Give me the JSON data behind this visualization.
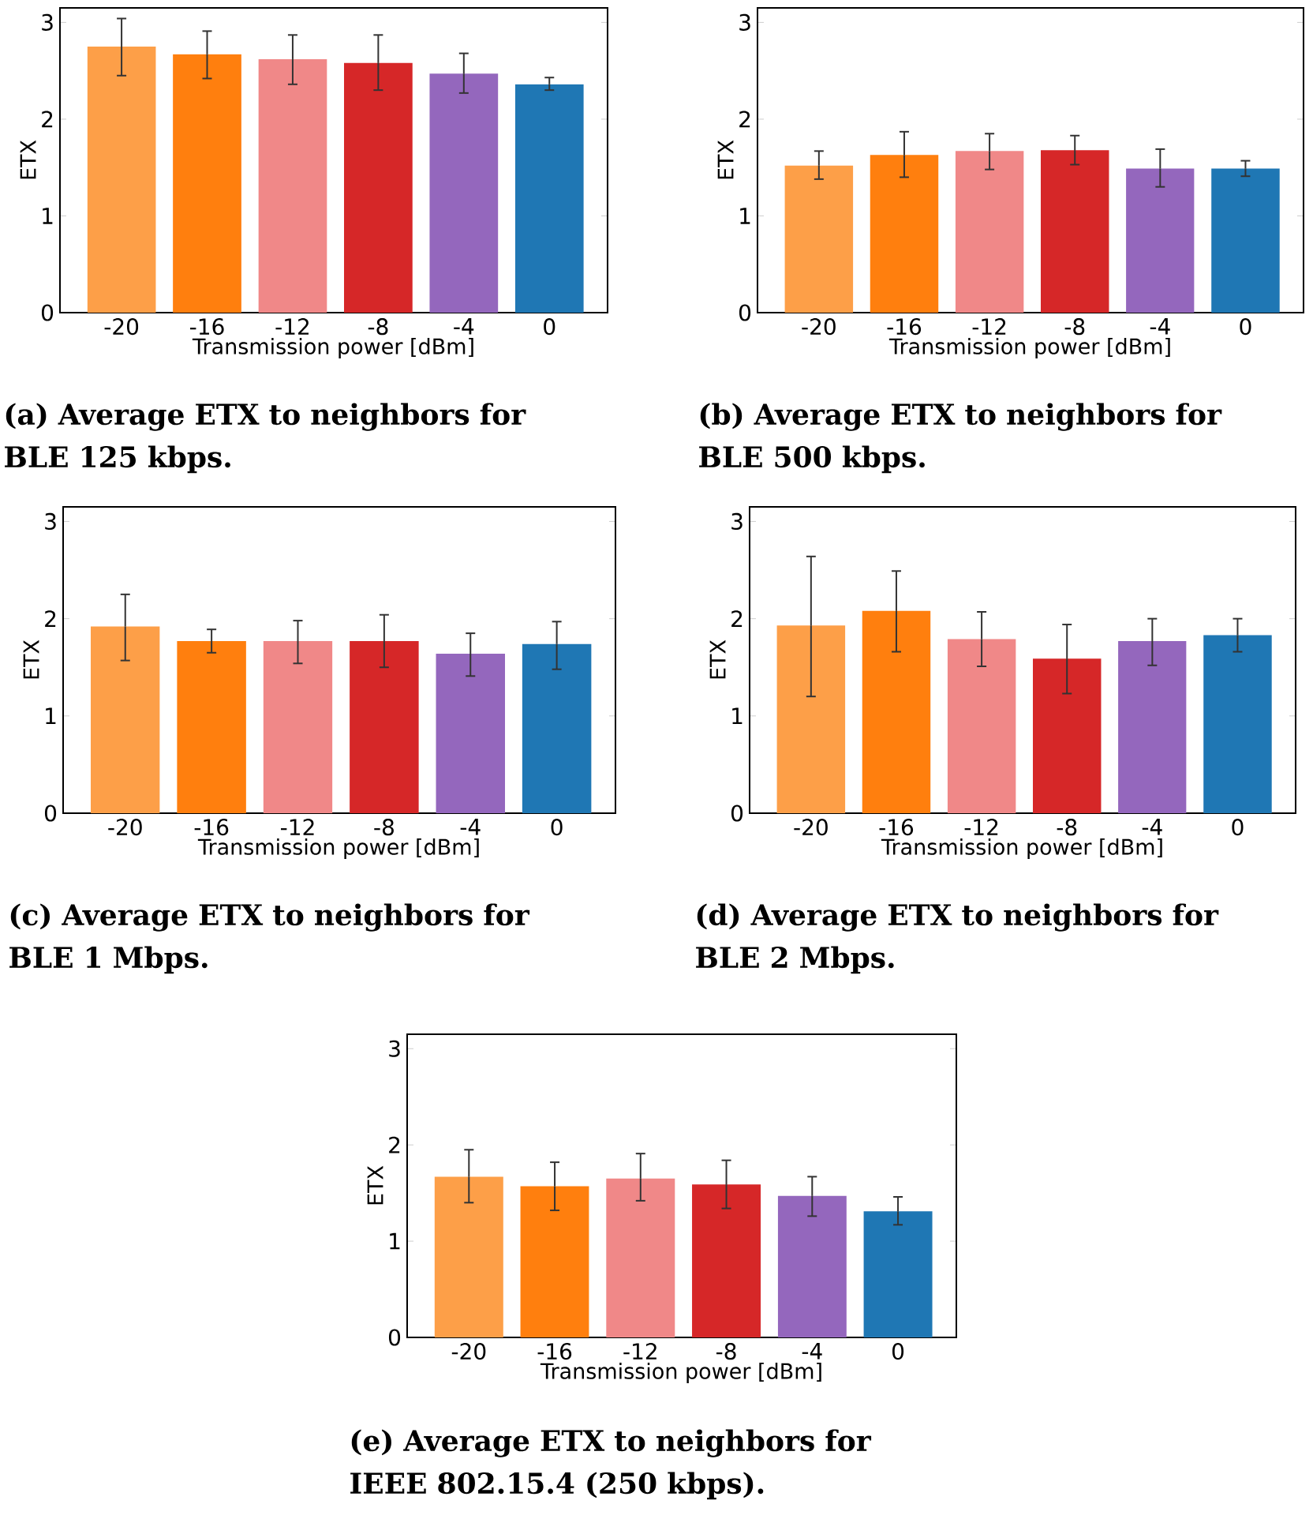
{
  "chart_data": [
    {
      "type": "bar",
      "title": "(a) Average ETX to neighbors for BLE 125 kbps.",
      "xlabel": "Transmission power [dBm]",
      "ylabel": "ETX",
      "categories": [
        "-20",
        "-16",
        "-12",
        "-8",
        "-4",
        "0"
      ],
      "values": [
        2.75,
        2.67,
        2.62,
        2.58,
        2.47,
        2.36
      ],
      "errors": [
        [
          2.45,
          3.04
        ],
        [
          2.42,
          2.91
        ],
        [
          2.36,
          2.87
        ],
        [
          2.3,
          2.87
        ],
        [
          2.27,
          2.68
        ],
        [
          2.3,
          2.43
        ]
      ],
      "colors": [
        "#fd9f48",
        "#ff7f0e",
        "#f08888",
        "#d62728",
        "#9467bd",
        "#1f77b4"
      ],
      "ylim": [
        0,
        3.15
      ],
      "yticks": [
        0,
        1,
        2,
        3
      ]
    },
    {
      "type": "bar",
      "title": "(b) Average ETX to neighbors for BLE 500 kbps.",
      "xlabel": "Transmission power [dBm]",
      "ylabel": "ETX",
      "categories": [
        "-20",
        "-16",
        "-12",
        "-8",
        "-4",
        "0"
      ],
      "values": [
        1.52,
        1.63,
        1.67,
        1.68,
        1.49,
        1.49
      ],
      "errors": [
        [
          1.38,
          1.67
        ],
        [
          1.4,
          1.87
        ],
        [
          1.48,
          1.85
        ],
        [
          1.53,
          1.83
        ],
        [
          1.3,
          1.69
        ],
        [
          1.41,
          1.57
        ]
      ],
      "colors": [
        "#fd9f48",
        "#ff7f0e",
        "#f08888",
        "#d62728",
        "#9467bd",
        "#1f77b4"
      ],
      "ylim": [
        0,
        3.15
      ],
      "yticks": [
        0,
        1,
        2,
        3
      ]
    },
    {
      "type": "bar",
      "title": "(c) Average ETX to neighbors for BLE 1 Mbps.",
      "xlabel": "Transmission power [dBm]",
      "ylabel": "ETX",
      "categories": [
        "-20",
        "-16",
        "-12",
        "-8",
        "-4",
        "0"
      ],
      "values": [
        1.92,
        1.77,
        1.77,
        1.77,
        1.64,
        1.74
      ],
      "errors": [
        [
          1.57,
          2.25
        ],
        [
          1.65,
          1.89
        ],
        [
          1.54,
          1.98
        ],
        [
          1.5,
          2.04
        ],
        [
          1.41,
          1.85
        ],
        [
          1.48,
          1.97
        ]
      ],
      "colors": [
        "#fd9f48",
        "#ff7f0e",
        "#f08888",
        "#d62728",
        "#9467bd",
        "#1f77b4"
      ],
      "ylim": [
        0,
        3.15
      ],
      "yticks": [
        0,
        1,
        2,
        3
      ]
    },
    {
      "type": "bar",
      "title": "(d) Average ETX to neighbors for BLE 2 Mbps.",
      "xlabel": "Transmission power [dBm]",
      "ylabel": "ETX",
      "categories": [
        "-20",
        "-16",
        "-12",
        "-8",
        "-4",
        "0"
      ],
      "values": [
        1.93,
        2.08,
        1.79,
        1.59,
        1.77,
        1.83
      ],
      "errors": [
        [
          1.2,
          2.64
        ],
        [
          1.66,
          2.49
        ],
        [
          1.51,
          2.07
        ],
        [
          1.23,
          1.94
        ],
        [
          1.52,
          2.0
        ],
        [
          1.66,
          2.0
        ]
      ],
      "colors": [
        "#fd9f48",
        "#ff7f0e",
        "#f08888",
        "#d62728",
        "#9467bd",
        "#1f77b4"
      ],
      "ylim": [
        0,
        3.15
      ],
      "yticks": [
        0,
        1,
        2,
        3
      ]
    },
    {
      "type": "bar",
      "title": "(e) Average ETX to neighbors for IEEE 802.15.4 (250 kbps).",
      "xlabel": "Transmission power [dBm]",
      "ylabel": "ETX",
      "categories": [
        "-20",
        "-16",
        "-12",
        "-8",
        "-4",
        "0"
      ],
      "values": [
        1.67,
        1.57,
        1.65,
        1.59,
        1.47,
        1.31
      ],
      "errors": [
        [
          1.4,
          1.95
        ],
        [
          1.32,
          1.82
        ],
        [
          1.42,
          1.91
        ],
        [
          1.34,
          1.84
        ],
        [
          1.26,
          1.67
        ],
        [
          1.17,
          1.46
        ]
      ],
      "colors": [
        "#fd9f48",
        "#ff7f0e",
        "#f08888",
        "#d62728",
        "#9467bd",
        "#1f77b4"
      ],
      "ylim": [
        0,
        3.15
      ],
      "yticks": [
        0,
        1,
        2,
        3
      ]
    }
  ]
}
